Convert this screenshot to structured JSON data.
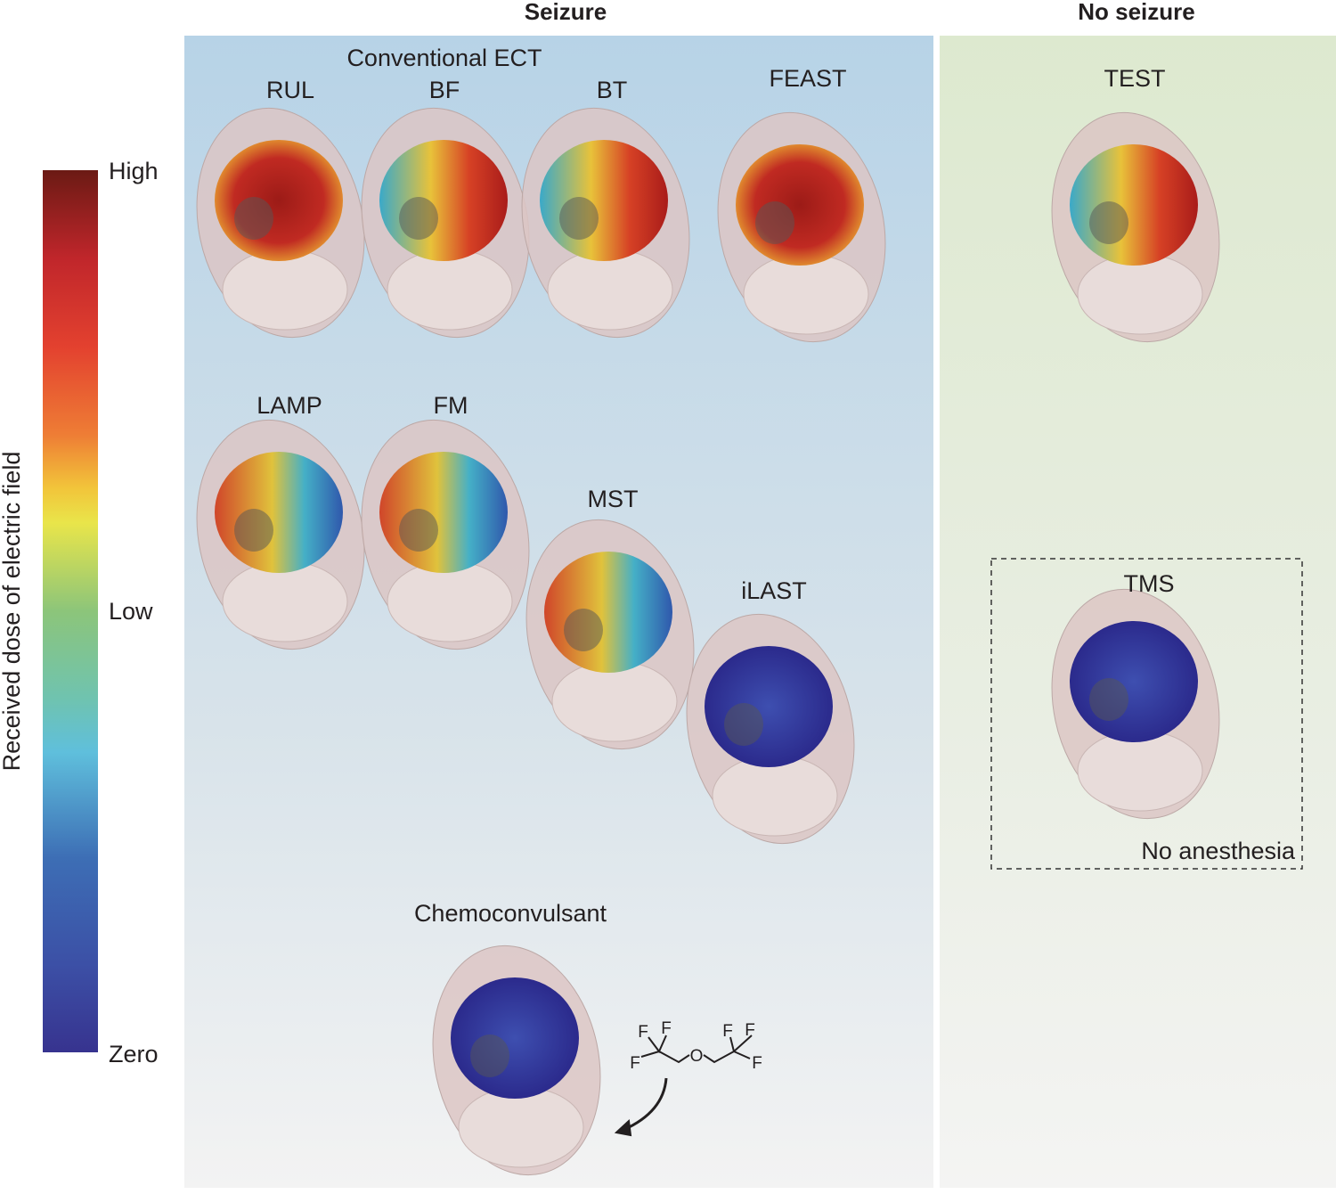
{
  "colorbar": {
    "title": "Received dose of electric field",
    "labels": [
      "High",
      "Low",
      "Zero"
    ]
  },
  "panels": {
    "seizure": {
      "title": "Seizure",
      "group_label": "Conventional ECT",
      "items": [
        "RUL",
        "BF",
        "BT",
        "FEAST",
        "LAMP",
        "FM",
        "MST",
        "iLAST",
        "Chemoconvulsant"
      ]
    },
    "no_seizure": {
      "title": "No seizure",
      "items": [
        "TEST",
        "TMS"
      ],
      "note": "No anesthesia"
    }
  },
  "molecule": {
    "atoms": [
      "F",
      "F",
      "F",
      "O",
      "F",
      "F",
      "F"
    ]
  }
}
